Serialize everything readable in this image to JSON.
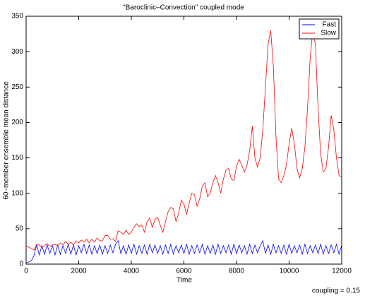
{
  "chart_data": {
    "type": "line",
    "title": "\"Baroclinic–Convection\" coupled mode",
    "xlabel": "Time",
    "ylabel": "60–member ensemble mean distance",
    "annotation": "coupling = 0.15",
    "legend": "upper right",
    "xlim": [
      0,
      12000
    ],
    "ylim": [
      0,
      350
    ],
    "xticks": [
      0,
      2000,
      4000,
      6000,
      8000,
      10000,
      12000
    ],
    "yticks": [
      0,
      50,
      100,
      150,
      200,
      250,
      300,
      350
    ],
    "x": [
      0,
      100,
      200,
      300,
      400,
      500,
      600,
      700,
      800,
      900,
      1000,
      1100,
      1200,
      1300,
      1400,
      1500,
      1600,
      1700,
      1800,
      1900,
      2000,
      2100,
      2200,
      2300,
      2400,
      2500,
      2600,
      2700,
      2800,
      2900,
      3000,
      3100,
      3200,
      3300,
      3400,
      3500,
      3600,
      3700,
      3800,
      3900,
      4000,
      4100,
      4200,
      4300,
      4400,
      4500,
      4600,
      4700,
      4800,
      4900,
      5000,
      5100,
      5200,
      5300,
      5400,
      5500,
      5600,
      5700,
      5800,
      5900,
      6000,
      6100,
      6200,
      6300,
      6400,
      6500,
      6600,
      6700,
      6800,
      6900,
      7000,
      7100,
      7200,
      7300,
      7400,
      7500,
      7600,
      7700,
      7800,
      7900,
      8000,
      8100,
      8200,
      8300,
      8400,
      8500,
      8600,
      8700,
      8800,
      8900,
      9000,
      9100,
      9200,
      9300,
      9400,
      9500,
      9600,
      9700,
      9800,
      9900,
      10000,
      10100,
      10200,
      10300,
      10400,
      10500,
      10600,
      10700,
      10800,
      10900,
      11000,
      11100,
      11200,
      11300,
      11400,
      11500,
      11600,
      11700,
      11800,
      11900,
      12000
    ],
    "series": [
      {
        "name": "Fast",
        "color": "#0000ff",
        "values": [
          2,
          3,
          5,
          12,
          27,
          13,
          26,
          14,
          27,
          15,
          26,
          13,
          27,
          14,
          26,
          15,
          28,
          14,
          27,
          13,
          26,
          16,
          28,
          15,
          27,
          14,
          26,
          15,
          27,
          14,
          26,
          15,
          27,
          16,
          28,
          33,
          15,
          26,
          14,
          27,
          15,
          28,
          14,
          26,
          15,
          27,
          14,
          28,
          16,
          27,
          15,
          26,
          14,
          27,
          15,
          28,
          14,
          26,
          16,
          27,
          15,
          28,
          14,
          26,
          15,
          27,
          16,
          28,
          14,
          26,
          15,
          27,
          14,
          28,
          15,
          26,
          16,
          27,
          14,
          28,
          15,
          27,
          16,
          26,
          14,
          28,
          15,
          27,
          16,
          26,
          33,
          15,
          27,
          14,
          28,
          16,
          26,
          15,
          27,
          14,
          28,
          15,
          26,
          16,
          27,
          14,
          28,
          15,
          26,
          16,
          27,
          15,
          28,
          14,
          26,
          15,
          27,
          16,
          28,
          14,
          27
        ]
      },
      {
        "name": "Slow",
        "color": "#ff0000",
        "values": [
          25,
          24,
          22,
          20,
          28,
          27,
          24,
          26,
          29,
          25,
          27,
          28,
          26,
          30,
          27,
          32,
          28,
          31,
          27,
          33,
          30,
          34,
          31,
          35,
          30,
          35,
          31,
          37,
          33,
          33,
          40,
          41,
          35,
          36,
          32,
          47,
          45,
          42,
          48,
          42,
          45,
          52,
          57,
          53,
          55,
          45,
          60,
          65,
          52,
          63,
          66,
          55,
          45,
          60,
          74,
          80,
          78,
          60,
          72,
          90,
          85,
          70,
          86,
          100,
          98,
          82,
          92,
          110,
          115,
          95,
          100,
          115,
          125,
          115,
          100,
          120,
          133,
          135,
          120,
          118,
          138,
          148,
          140,
          130,
          140,
          160,
          195,
          150,
          137,
          150,
          190,
          250,
          310,
          330,
          280,
          180,
          120,
          115,
          125,
          140,
          170,
          192,
          170,
          135,
          122,
          135,
          165,
          220,
          290,
          330,
          310,
          220,
          155,
          130,
          135,
          165,
          210,
          190,
          150,
          125,
          123
        ]
      }
    ]
  }
}
